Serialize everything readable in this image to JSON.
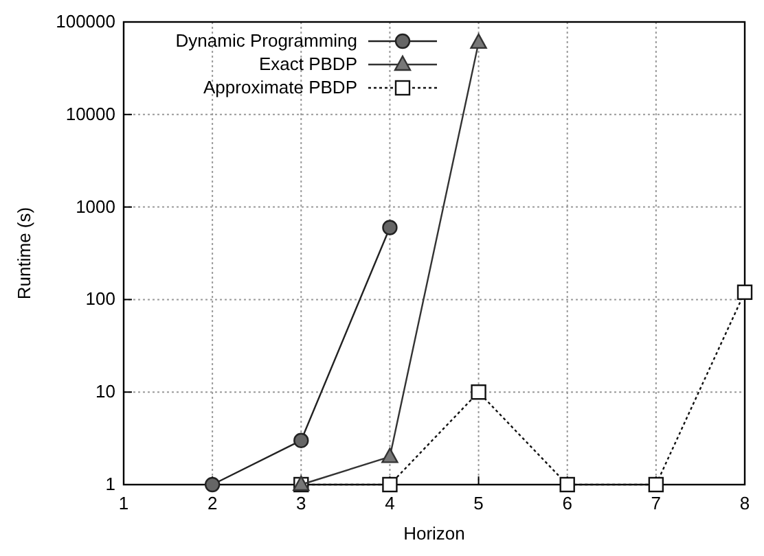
{
  "chart_data": {
    "type": "line",
    "xlabel": "Horizon",
    "ylabel": "Runtime (s)",
    "log": "y",
    "grid": true,
    "legend": "top left",
    "xlim": [
      1,
      8
    ],
    "xticks": [
      1,
      2,
      3,
      4,
      5,
      6,
      7,
      8
    ],
    "ylim": [
      1,
      100000
    ],
    "yticks": [
      1,
      10,
      100,
      1000,
      10000,
      100000
    ],
    "series": [
      {
        "name": "Dynamic Programming",
        "color": "#222222",
        "marker": "circle",
        "line_style": "solid",
        "x": [
          2,
          3,
          4
        ],
        "values": [
          1,
          3,
          600
        ]
      },
      {
        "name": "Exact PBDP",
        "color": "#333333",
        "marker": "triangle",
        "line_style": "solid",
        "x": [
          3,
          4,
          5
        ],
        "values": [
          1,
          2,
          60000
        ]
      },
      {
        "name": "Approximate PBDP",
        "color": "#111111",
        "marker": "square",
        "line_style": "dotted",
        "x": [
          3,
          4,
          5,
          6,
          7,
          8
        ],
        "values": [
          1,
          1,
          10,
          1,
          1,
          120
        ]
      }
    ]
  }
}
